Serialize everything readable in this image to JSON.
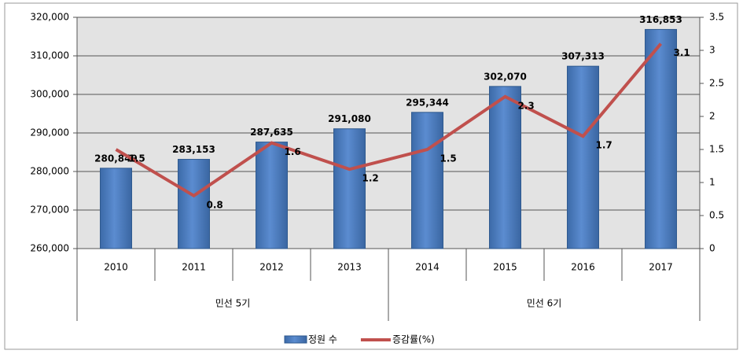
{
  "chart_data": {
    "type": "bar_line",
    "categories": [
      "2010",
      "2011",
      "2012",
      "2013",
      "2014",
      "2015",
      "2016",
      "2017"
    ],
    "category_groups": [
      "민선 5기",
      "민선 5기",
      "민선 5기",
      "민선 5기",
      "민선 6기",
      "민선 6기",
      "민선 6기",
      "민선 6기"
    ],
    "series": [
      {
        "name": "정원 수",
        "type": "bar",
        "color": "#4f81bd",
        "values": [
          280849,
          283153,
          287635,
          291080,
          295344,
          302070,
          307313,
          316853
        ],
        "value_labels": [
          "280,849",
          "283,153",
          "287,635",
          "291,080",
          "295,344",
          "302,070",
          "307,313",
          "316,853"
        ]
      },
      {
        "name": "증감률(%)",
        "type": "line",
        "color": "#c0504d",
        "axis": "y2",
        "values": [
          1.5,
          0.8,
          1.6,
          1.2,
          1.5,
          2.3,
          1.7,
          3.1
        ]
      }
    ],
    "ylim": [
      260000,
      320000
    ],
    "yticks": [
      {
        "value": 260000,
        "label": "260,000"
      },
      {
        "value": 270000,
        "label": "270,000"
      },
      {
        "value": 280000,
        "label": "280,000"
      },
      {
        "value": 290000,
        "label": "290,000"
      },
      {
        "value": 300000,
        "label": "300,000"
      },
      {
        "value": 310000,
        "label": "310,000"
      },
      {
        "value": 320000,
        "label": "320,000"
      }
    ],
    "y2lim": [
      0,
      3.5
    ],
    "y2ticks": [
      0,
      0.5,
      1,
      1.5,
      2,
      2.5,
      3,
      3.5
    ],
    "grid": true,
    "legend": "bottom"
  }
}
